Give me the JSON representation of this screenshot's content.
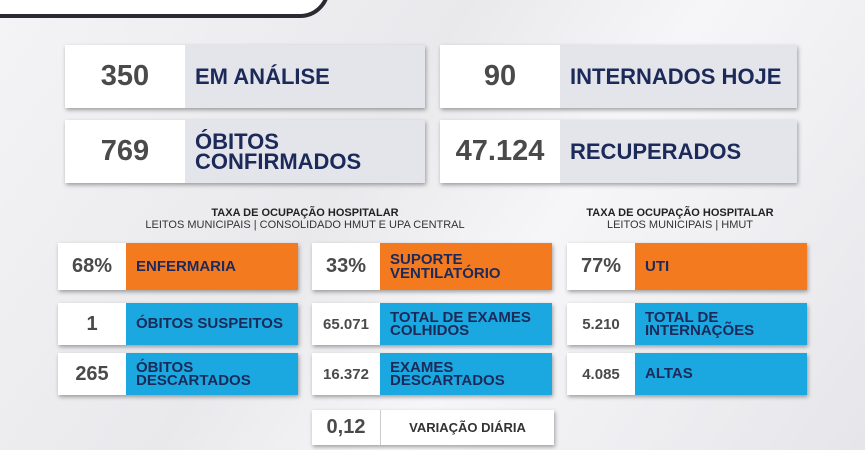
{
  "stats": [
    {
      "value": "350",
      "label": "EM ANÁLISE"
    },
    {
      "value": "90",
      "label": "INTERNADOS HOJE"
    },
    {
      "value": "769",
      "label": "ÓBITOS CONFIRMADOS"
    },
    {
      "value": "47.124",
      "label": "RECUPERADOS"
    }
  ],
  "headers": [
    {
      "title": "TAXA DE OCUPAÇÃO HOSPITALAR",
      "subtitle": "LEITOS MUNICIPAIS | CONSOLIDADO HMUT E UPA CENTRAL"
    },
    {
      "title": "TAXA DE OCUPAÇÃO HOSPITALAR",
      "subtitle": "LEITOS MUNICIPAIS |  HMUT"
    }
  ],
  "cards": [
    [
      {
        "value": "68%",
        "label": "ENFERMARIA",
        "style": "orange"
      },
      {
        "value": "33%",
        "label": "SUPORTE VENTILATÓRIO",
        "style": "orange"
      },
      {
        "value": "77%",
        "label": "UTI",
        "style": "orange"
      }
    ],
    [
      {
        "value": "1",
        "label": "ÓBITOS SUSPEITOS",
        "style": "blue"
      },
      {
        "value": "65.071",
        "label": "TOTAL DE EXAMES COLHIDOS",
        "style": "blue"
      },
      {
        "value": "5.210",
        "label": "TOTAL DE INTERNAÇÕES",
        "style": "blue"
      }
    ],
    [
      {
        "value": "265",
        "label": "ÓBITOS DESCARTADOS",
        "style": "blue"
      },
      {
        "value": "16.372",
        "label": "EXAMES DESCARTADOS",
        "style": "blue"
      },
      {
        "value": "4.085",
        "label": "ALTAS",
        "style": "blue"
      }
    ],
    [
      null,
      {
        "value": "0,12",
        "label": "VARIAÇÃO DIÁRIA",
        "style": "white"
      },
      null
    ]
  ]
}
